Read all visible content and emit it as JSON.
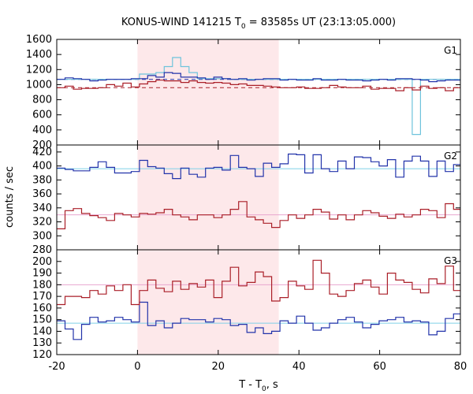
{
  "chart_data": {
    "type": "line",
    "title_main": "KONUS-WIND 141215 T",
    "title_sub": "0",
    "title_rest": " = 83585s UT (23:13:05.000)",
    "xlabel_main": "T - T",
    "xlabel_sub": "0",
    "xlabel_rest": ", s",
    "ylabel": "counts / sec",
    "xlim": [
      -20,
      80
    ],
    "x_ticks": [
      -20,
      0,
      20,
      40,
      60,
      80
    ],
    "shaded_interval": [
      0,
      35
    ],
    "colors": {
      "blue": "#2233aa",
      "red": "#aa1f28",
      "cyan": "#6ec3dc",
      "pink_line": "#e8a6cf",
      "shade": "#fde8ea",
      "bg_blue_line": "#7fd0e8"
    },
    "panels": [
      {
        "label": "G1",
        "ylim": [
          200,
          1600
        ],
        "yticks": [
          200,
          400,
          600,
          800,
          1000,
          1200,
          1400,
          1600
        ],
        "bin_width": 2.048,
        "x_start": -20,
        "background": [
          {
            "color": "blue",
            "value": 1070,
            "dashed": true
          },
          {
            "color": "red",
            "value": 960,
            "dashed": true
          }
        ],
        "series": [
          {
            "color": "cyan",
            "values": [
              1070,
              1070,
              1070,
              1070,
              1070,
              1070,
              1070,
              1070,
              1070,
              1070,
              1140,
              1140,
              1160,
              1240,
              1360,
              1240,
              1160,
              1080,
              1080,
              1080,
              1080,
              1070,
              1070,
              1070,
              1070,
              1070,
              1070,
              1070,
              1070,
              1070,
              1070,
              1070,
              1070,
              1070,
              1070,
              1070,
              1070,
              1070,
              1070,
              1070,
              1070,
              1070,
              1070,
              340,
              1070,
              1070,
              1070,
              1070,
              1070
            ]
          },
          {
            "color": "blue",
            "values": [
              1070,
              1090,
              1080,
              1070,
              1050,
              1060,
              1070,
              1070,
              1070,
              1080,
              1080,
              1120,
              1100,
              1160,
              1150,
              1100,
              1100,
              1090,
              1070,
              1100,
              1080,
              1070,
              1080,
              1060,
              1070,
              1080,
              1080,
              1060,
              1070,
              1060,
              1060,
              1080,
              1060,
              1060,
              1070,
              1060,
              1060,
              1050,
              1060,
              1070,
              1060,
              1080,
              1080,
              1070,
              1060,
              1040,
              1050,
              1060,
              1060
            ]
          },
          {
            "color": "red",
            "values": [
              960,
              980,
              940,
              950,
              950,
              960,
              1000,
              980,
              1020,
              970,
              1010,
              1040,
              1060,
              1050,
              1050,
              1030,
              1050,
              1030,
              1020,
              1030,
              1020,
              1000,
              1010,
              990,
              990,
              980,
              970,
              960,
              960,
              970,
              950,
              950,
              960,
              990,
              970,
              960,
              960,
              980,
              940,
              950,
              950,
              920,
              960,
              930,
              980,
              950,
              960,
              920,
              960
            ]
          }
        ]
      },
      {
        "label": "G2",
        "ylim": [
          280,
          430
        ],
        "yticks": [
          280,
          300,
          320,
          340,
          360,
          380,
          400,
          420
        ],
        "bin_width": 2.048,
        "x_start": -20,
        "background": [
          {
            "color": "bg_blue_line",
            "value": 396
          },
          {
            "color": "pink_line",
            "value": 330
          }
        ],
        "series": [
          {
            "color": "blue",
            "values": [
              397,
              395,
              393,
              393,
              398,
              406,
              398,
              390,
              390,
              392,
              408,
              399,
              397,
              389,
              382,
              397,
              388,
              384,
              397,
              398,
              394,
              415,
              398,
              396,
              385,
              404,
              398,
              403,
              417,
              416,
              390,
              416,
              396,
              392,
              407,
              396,
              413,
              412,
              406,
              400,
              409,
              384,
              407,
              414,
              407,
              385,
              407,
              392,
              402
            ]
          },
          {
            "color": "red",
            "values": [
              310,
              336,
              339,
              332,
              329,
              326,
              322,
              332,
              330,
              327,
              332,
              331,
              333,
              338,
              330,
              327,
              323,
              330,
              330,
              326,
              330,
              338,
              349,
              327,
              323,
              318,
              312,
              322,
              330,
              325,
              330,
              338,
              334,
              324,
              330,
              323,
              330,
              336,
              333,
              328,
              325,
              331,
              327,
              330,
              338,
              336,
              326,
              346,
              338
            ]
          }
        ]
      },
      {
        "label": "G3",
        "ylim": [
          120,
          210
        ],
        "yticks": [
          120,
          130,
          140,
          150,
          160,
          170,
          180,
          190,
          200
        ],
        "bin_width": 2.048,
        "x_start": -20,
        "background": [
          {
            "color": "bg_blue_line",
            "value": 147
          },
          {
            "color": "pink_line",
            "value": 180
          }
        ],
        "series": [
          {
            "color": "blue",
            "values": [
              149,
              142,
              133,
              146,
              152,
              148,
              149,
              152,
              150,
              148,
              165,
              145,
              149,
              143,
              147,
              151,
              150,
              150,
              148,
              151,
              150,
              145,
              146,
              139,
              143,
              138,
              140,
              149,
              147,
              153,
              147,
              141,
              143,
              147,
              150,
              152,
              148,
              143,
              146,
              149,
              150,
              152,
              148,
              149,
              148,
              137,
              140,
              151,
              155
            ]
          },
          {
            "color": "red",
            "values": [
              163,
              170,
              170,
              169,
              175,
              172,
              179,
              175,
              180,
              163,
              175,
              184,
              177,
              174,
              183,
              176,
              181,
              178,
              184,
              169,
              183,
              195,
              179,
              182,
              191,
              187,
              166,
              169,
              183,
              179,
              176,
              201,
              190,
              172,
              170,
              175,
              181,
              184,
              178,
              172,
              190,
              184,
              182,
              176,
              173,
              185,
              181,
              196,
              175
            ]
          }
        ]
      }
    ]
  }
}
